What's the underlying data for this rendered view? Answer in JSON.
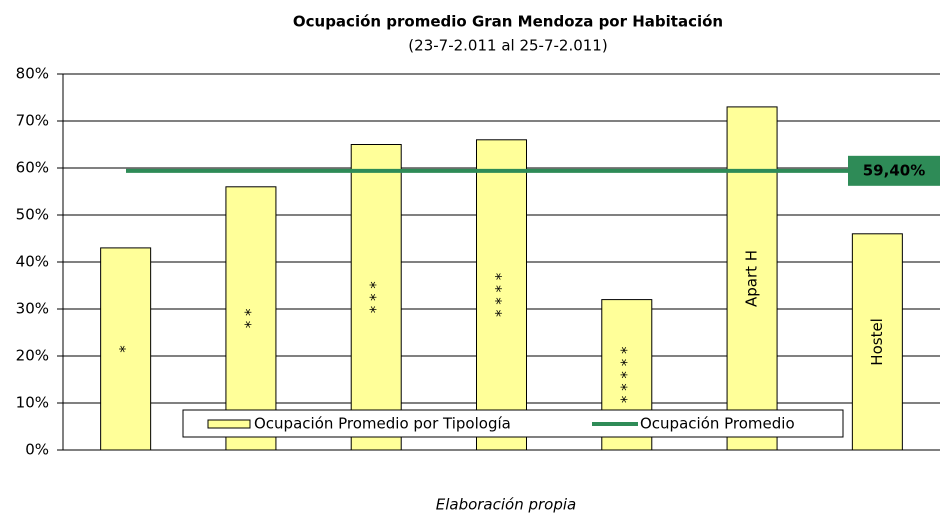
{
  "chart_data": {
    "type": "bar",
    "title": "Ocupación promedio Gran Mendoza por Habitación",
    "subtitle": "(23-7-2.011 al 25-7-2.011)",
    "categories": [
      "*",
      "* *",
      "* * *",
      "* * * *",
      "* * * * *",
      "Apart H",
      "Hostel"
    ],
    "series": [
      {
        "name": "Ocupación Promedio por Tipología",
        "color": "#ffff99",
        "values": [
          43,
          56,
          65,
          66,
          32,
          73,
          46
        ]
      }
    ],
    "reference_line": {
      "name": "Ocupación Promedio",
      "color": "#2e8b57",
      "value": 59.4,
      "value_label": "59,40%"
    },
    "ylim": [
      0,
      80
    ],
    "yticks": [
      {
        "value": 0,
        "label": "0%"
      },
      {
        "value": 10,
        "label": "10%"
      },
      {
        "value": 20,
        "label": "20%"
      },
      {
        "value": 30,
        "label": "30%"
      },
      {
        "value": 40,
        "label": "40%"
      },
      {
        "value": 50,
        "label": "50%"
      },
      {
        "value": 60,
        "label": "60%"
      },
      {
        "value": 70,
        "label": "70%"
      },
      {
        "value": 80,
        "label": "80%"
      }
    ],
    "grid": true,
    "legend": "bottom",
    "note": "Elaboración propia"
  }
}
